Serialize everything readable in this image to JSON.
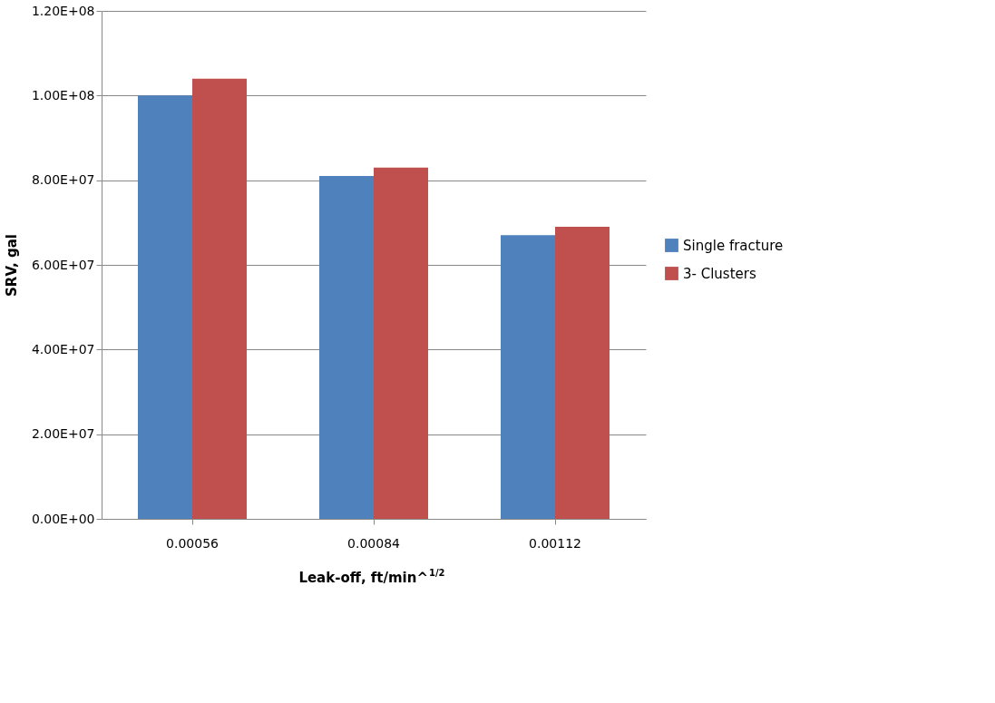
{
  "chart_data": {
    "type": "bar",
    "xlabel": "Leak-off, ft/min^$^{1/2}$",
    "ylabel": "SRV, gal",
    "categories": [
      "0.00056",
      "0.00084",
      "0.00112"
    ],
    "series": [
      {
        "name": "Single fracture",
        "color": "#4f81bd",
        "values": [
          100000000,
          81000000,
          67000000
        ]
      },
      {
        "name": "3- Clusters",
        "color": "#c0504d",
        "values": [
          104000000,
          83000000,
          69000000
        ]
      }
    ],
    "ylim": [
      0,
      120000000
    ],
    "yticks": [
      {
        "value": 0,
        "label": "0.00E+00"
      },
      {
        "value": 20000000,
        "label": "2.00E+07"
      },
      {
        "value": 40000000,
        "label": "4.00E+07"
      },
      {
        "value": 60000000,
        "label": "6.00E+07"
      },
      {
        "value": 80000000,
        "label": "8.00E+07"
      },
      {
        "value": 100000000,
        "label": "1.00E+08"
      },
      {
        "value": 120000000,
        "label": "1.20E+08"
      }
    ],
    "grid": "y",
    "legend": "right"
  }
}
